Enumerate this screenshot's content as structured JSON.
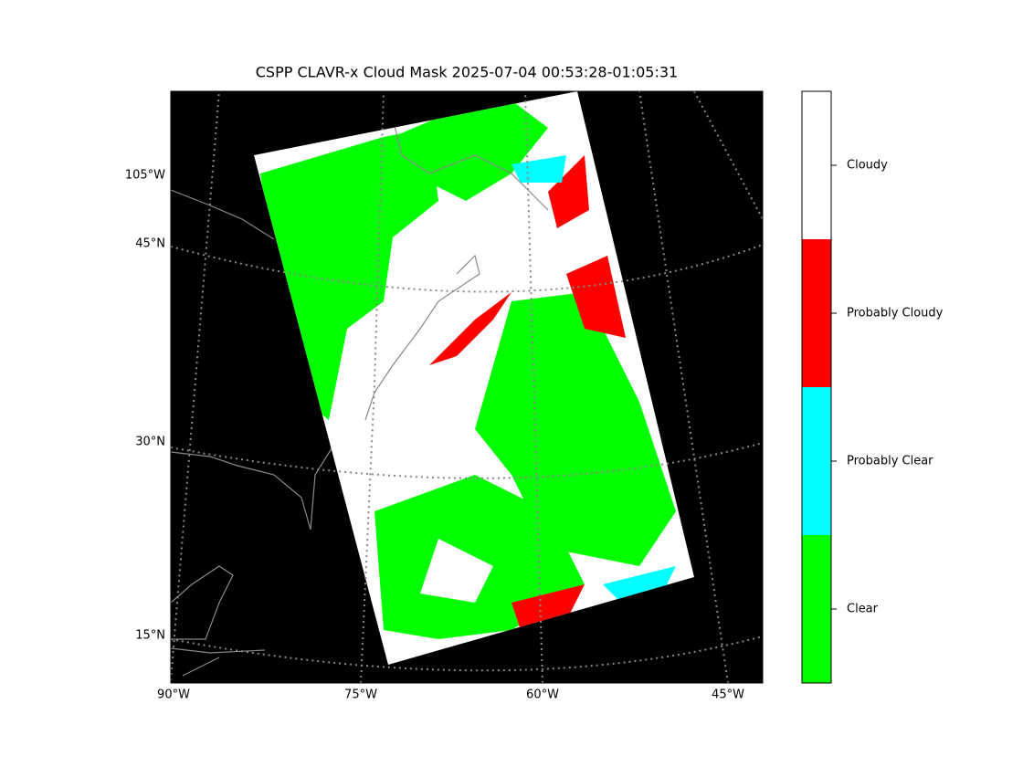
{
  "title": "CSPP CLAVR-x Cloud Mask 2025-07-04 00:53:28-01:05:31",
  "map": {
    "left_labels": [
      "105°W",
      "45°N",
      "30°N",
      "15°N"
    ],
    "bottom_labels": [
      "90°W",
      "75°W",
      "60°W",
      "45°W"
    ]
  },
  "colorbar": {
    "categories": [
      {
        "label": "Cloudy",
        "color": "#ffffff"
      },
      {
        "label": "Probably Cloudy",
        "color": "#ff0000"
      },
      {
        "label": "Probably Clear",
        "color": "#00ffff"
      },
      {
        "label": "Clear",
        "color": "#00ff00"
      }
    ]
  }
}
